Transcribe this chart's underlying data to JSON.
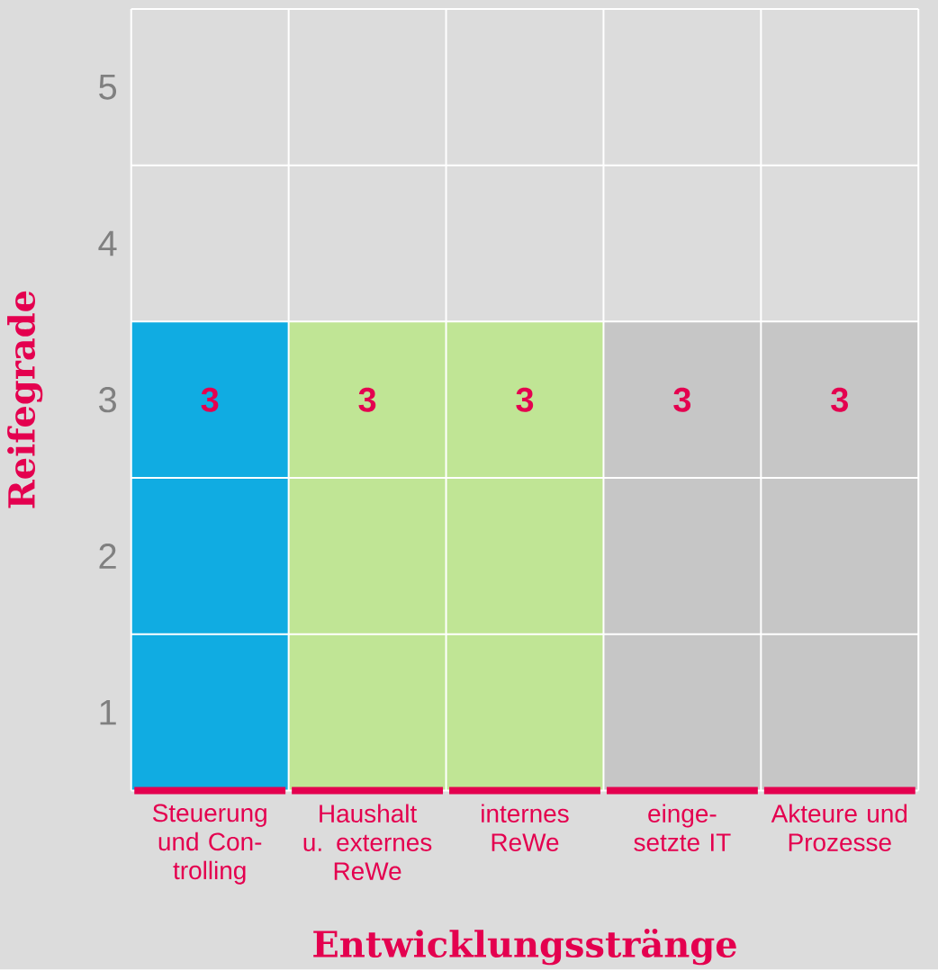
{
  "chart_data": {
    "type": "bar",
    "xlabel": "Entwicklungsstränge",
    "ylabel": "Reifegrade",
    "categories": [
      "Steuerung und Con-trolling",
      "Haushalt u. externes ReWe",
      "internes ReWe",
      "einge-setzte IT",
      "Akteure und Prozesse"
    ],
    "values": [
      3,
      3,
      3,
      3,
      3
    ],
    "colors": [
      "#10ace2",
      "#c0e595",
      "#c0e595",
      "#c6c6c6",
      "#c6c6c6"
    ],
    "ylim": [
      0,
      5
    ],
    "yticks": [
      {
        "value": 0.5,
        "label": "1"
      },
      {
        "value": 1.5,
        "label": "2"
      },
      {
        "value": 2.5,
        "label": "3"
      },
      {
        "value": 3.5,
        "label": "4"
      },
      {
        "value": 4.5,
        "label": "5"
      }
    ],
    "grid": true,
    "data_labels": true
  }
}
